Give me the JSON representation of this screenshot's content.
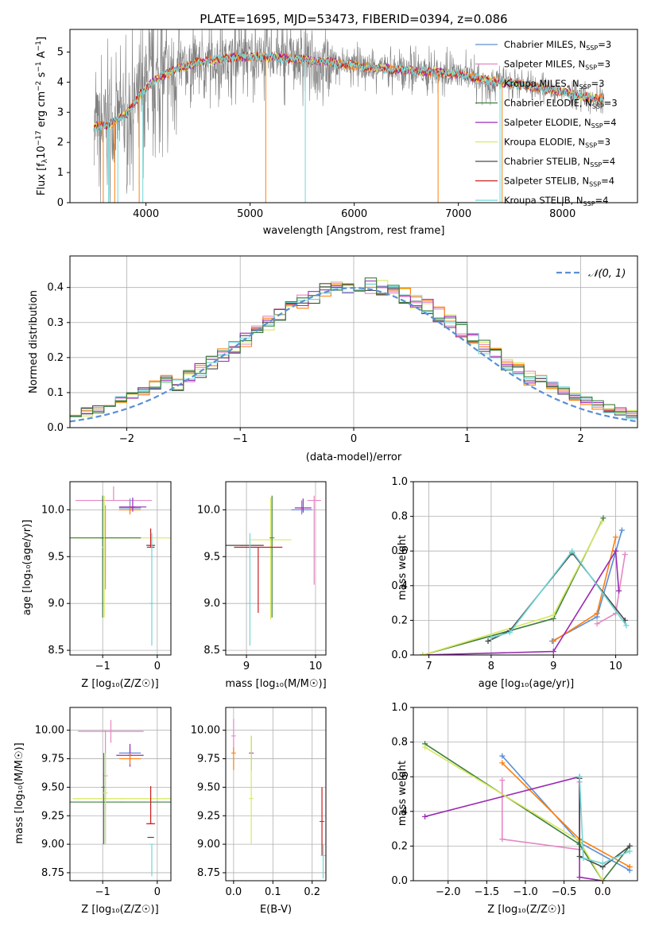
{
  "title": "PLATE=1695, MJD=53473, FIBERID=0394, z=0.086",
  "colors": {
    "Chabrier MILES": "#5b8fd6",
    "Salpeter MILES": "#e588c4",
    "Kroupa MILES": "#7ab0e0",
    "Chabrier ELODIE": "#3d7f3d",
    "Salpeter ELODIE": "#9a2ab3",
    "Kroupa ELODIE": "#d8e860",
    "Chabrier STELIB": "#4a4a4a",
    "Salpeter STELIB": "#c81e1e",
    "Kroupa STELIB": "#70d6d6",
    "orange": "#ff7f0e",
    "gray_spectrum": "#808080",
    "normal_curve": "#5b8fd6"
  },
  "chart_data": [
    {
      "type": "line",
      "id": "spectrum",
      "title": "PLATE=1695, MJD=53473, FIBERID=0394, z=0.086",
      "xlabel": "wavelength [Angstrom, rest frame]",
      "ylabel_pre": "Flux [f",
      "ylabel_sub": "λ",
      "ylabel_mid": "10",
      "ylabel_sup1": "−17",
      "ylabel_mid2": " erg cm",
      "ylabel_sup2": "−2",
      "ylabel_mid3": " s",
      "ylabel_sup3": "−1",
      "ylabel_post": " A",
      "ylabel_sup4": "−1",
      "ylabel_end": "]",
      "xlim": [
        3270,
        8720
      ],
      "ylim": [
        0,
        5.75
      ],
      "xticks": [
        4000,
        5000,
        6000,
        7000,
        8000
      ],
      "yticks": [
        0,
        1,
        2,
        3,
        4,
        5
      ],
      "continuum": {
        "x": [
          3500,
          3650,
          3800,
          3950,
          4100,
          4300,
          4500,
          4700,
          4900,
          5100,
          5300,
          5500,
          5700,
          5900,
          6100,
          6300,
          6500,
          6700,
          6900,
          7100,
          7300,
          7500,
          7700,
          7900,
          8100,
          8300,
          8400
        ],
        "y": [
          2.5,
          2.6,
          2.9,
          3.6,
          4.1,
          4.45,
          4.65,
          4.75,
          4.85,
          4.85,
          4.8,
          4.75,
          4.7,
          4.6,
          4.5,
          4.45,
          4.4,
          4.35,
          4.3,
          4.2,
          4.05,
          3.95,
          3.85,
          3.75,
          3.6,
          3.45,
          3.4
        ]
      },
      "legend": [
        {
          "label": "Chabrier MILES, N",
          "sub": "SSP",
          "suffix": "=3",
          "key": "Chabrier MILES"
        },
        {
          "label": "Salpeter MILES, N",
          "sub": "SSP",
          "suffix": "=3",
          "key": "Salpeter MILES"
        },
        {
          "label": "Kroupa MILES, N",
          "sub": "SSP",
          "suffix": "=3",
          "key": "Kroupa MILES"
        },
        {
          "label": "Chabrier ELODIE, N",
          "sub": "SSP",
          "suffix": "=3",
          "key": "Chabrier ELODIE"
        },
        {
          "label": "Salpeter ELODIE, N",
          "sub": "SSP",
          "suffix": "=4",
          "key": "Salpeter ELODIE"
        },
        {
          "label": "Kroupa ELODIE, N",
          "sub": "SSP",
          "suffix": "=3",
          "key": "Kroupa ELODIE"
        },
        {
          "label": "Chabrier STELIB, N",
          "sub": "SSP",
          "suffix": "=4",
          "key": "Chabrier STELIB"
        },
        {
          "label": "Salpeter STELIB, N",
          "sub": "SSP",
          "suffix": "=4",
          "key": "Salpeter STELIB"
        },
        {
          "label": "Kroupa STELIB, N",
          "sub": "SSP",
          "suffix": "=4",
          "key": "Kroupa STELIB"
        }
      ]
    },
    {
      "type": "line",
      "id": "residuals",
      "xlabel": "(data-model)/error",
      "ylabel": "Normed distribution",
      "xlim": [
        -2.5,
        2.5
      ],
      "ylim": [
        0,
        0.49
      ],
      "xticks": [
        -2,
        -1,
        0,
        1,
        2
      ],
      "xticklabels": [
        "−2",
        "−1",
        "0",
        "1",
        "2"
      ],
      "yticks": [
        0.0,
        0.1,
        0.2,
        0.3,
        0.4
      ],
      "yticklabels": [
        "0.0",
        "0.1",
        "0.2",
        "0.3",
        "0.4"
      ],
      "grid": true,
      "legend": "𝒩(0, 1)",
      "bin_width": 0.1
    },
    {
      "type": "scatter",
      "id": "age_vs_Z",
      "xlabel": "Z [log₁₀(Z/Z☉)]",
      "ylabel": "age  [log₁₀(age/yr)]",
      "xlim": [
        -1.6,
        0.25
      ],
      "ylim": [
        8.45,
        10.3
      ],
      "xticks": [
        -1,
        0
      ],
      "xticklabels": [
        "−1",
        "0"
      ],
      "yticks": [
        8.5,
        9.0,
        9.5,
        10.0
      ],
      "yticklabels": [
        "8.5",
        "9.0",
        "9.5",
        "10.0"
      ],
      "points": [
        {
          "key": "Salpeter MILES",
          "x": -0.8,
          "y": 10.1,
          "xerr": 0.7,
          "yerr": [
            0.0,
            0.15
          ]
        },
        {
          "key": "Salpeter MILES",
          "x": -0.95,
          "y": 9.7,
          "xerr": 0.0,
          "yerr": [
            0.55,
            0.35
          ]
        },
        {
          "key": "Chabrier MILES",
          "x": -0.5,
          "y": 10.02,
          "xerr": 0.2,
          "yerr": [
            0.05,
            0.1
          ]
        },
        {
          "key": "orange",
          "x": -0.5,
          "y": 10.0,
          "xerr": 0.2,
          "yerr": [
            0.05,
            0.05
          ]
        },
        {
          "key": "Salpeter ELODIE",
          "x": -0.45,
          "y": 10.03,
          "xerr": 0.25,
          "yerr": [
            0.05,
            0.1
          ]
        },
        {
          "key": "Kroupa ELODIE",
          "x": -0.65,
          "y": 9.7,
          "xerr": 0.9,
          "yerr": [
            0.0,
            0.0
          ]
        },
        {
          "key": "Chabrier ELODIE",
          "x": -1.0,
          "y": 9.7,
          "xerr": 0.7,
          "yerr": [
            0.85,
            0.45
          ]
        },
        {
          "key": "Kroupa ELODIE",
          "x": -0.97,
          "y": 9.6,
          "xerr": 0.0,
          "yerr": [
            0.75,
            0.55
          ]
        },
        {
          "key": "Chabrier STELIB",
          "x": -0.12,
          "y": 9.62,
          "xerr": 0.08,
          "yerr": [
            0.0,
            0.0
          ]
        },
        {
          "key": "Salpeter STELIB",
          "x": -0.12,
          "y": 9.6,
          "xerr": 0.07,
          "yerr": [
            0.0,
            0.2
          ]
        },
        {
          "key": "Kroupa STELIB",
          "x": -0.1,
          "y": 9.0,
          "xerr": 0.0,
          "yerr": [
            0.45,
            0.75
          ]
        }
      ]
    },
    {
      "type": "scatter",
      "id": "age_vs_mass",
      "xlabel": "mass [log₁₀(M/M☉)]",
      "xlim": [
        8.7,
        10.15
      ],
      "ylim": [
        8.45,
        10.3
      ],
      "xticks": [
        9,
        10
      ],
      "xticklabels": [
        "9",
        "10"
      ],
      "yticks": [
        8.5,
        9.0,
        9.5,
        10.0
      ],
      "yticklabels": [
        "8.5",
        "9.0",
        "9.5",
        "10.0"
      ],
      "points": [
        {
          "key": "Salpeter MILES",
          "x": 9.98,
          "y": 10.1,
          "xerr": 0.1,
          "yerr": [
            0.9,
            0.05
          ]
        },
        {
          "key": "Chabrier MILES",
          "x": 9.8,
          "y": 10.0,
          "xerr": 0.15,
          "yerr": [
            0.05,
            0.1
          ]
        },
        {
          "key": "Salpeter ELODIE",
          "x": 9.82,
          "y": 10.02,
          "xerr": 0.12,
          "yerr": [
            0.05,
            0.1
          ]
        },
        {
          "key": "Kroupa ELODIE",
          "x": 9.35,
          "y": 9.68,
          "xerr": 0.3,
          "yerr": [
            0.85,
            0.45
          ]
        },
        {
          "key": "Chabrier ELODIE",
          "x": 9.37,
          "y": 9.7,
          "xerr": 0.0,
          "yerr": [
            0.85,
            0.45
          ]
        },
        {
          "key": "Chabrier STELIB",
          "x": 8.95,
          "y": 9.62,
          "xerr": 0.3,
          "yerr": [
            0.0,
            0.0
          ]
        },
        {
          "key": "Salpeter STELIB",
          "x": 9.17,
          "y": 9.6,
          "xerr": 0.35,
          "yerr": [
            0.7,
            0.0
          ]
        },
        {
          "key": "Kroupa STELIB",
          "x": 9.05,
          "y": 9.0,
          "xerr": 0.0,
          "yerr": [
            0.45,
            0.75
          ]
        }
      ]
    },
    {
      "type": "line",
      "id": "weight_vs_age",
      "xlabel": "age  [log₁₀(age/yr)]",
      "ylabel": "mass weight",
      "xlim": [
        6.75,
        10.35
      ],
      "ylim": [
        0,
        1.0
      ],
      "xticks": [
        7,
        8,
        9,
        10
      ],
      "yticks": [
        0,
        0.2,
        0.4,
        0.6,
        0.8,
        1.0
      ],
      "yticklabels": [
        "0.0",
        "0.2",
        "0.4",
        "0.6",
        "0.8",
        "1.0"
      ],
      "grid": true,
      "series": [
        {
          "key": "Chabrier MILES",
          "x": [
            8.98,
            9.7,
            10.1
          ],
          "y": [
            0.08,
            0.22,
            0.72
          ]
        },
        {
          "key": "orange",
          "x": [
            9.0,
            9.7,
            10.0
          ],
          "y": [
            0.08,
            0.24,
            0.68
          ]
        },
        {
          "key": "Salpeter MILES",
          "x": [
            9.7,
            10.0,
            10.15
          ],
          "y": [
            0.18,
            0.24,
            0.58
          ]
        },
        {
          "key": "Salpeter ELODIE",
          "x": [
            6.9,
            9.0,
            10.0,
            10.05
          ],
          "y": [
            0.0,
            0.02,
            0.6,
            0.37
          ]
        },
        {
          "key": "Chabrier ELODIE",
          "x": [
            6.9,
            9.0,
            9.8
          ],
          "y": [
            0.0,
            0.21,
            0.79
          ]
        },
        {
          "key": "Kroupa ELODIE",
          "x": [
            6.9,
            9.0,
            9.78
          ],
          "y": [
            0.0,
            0.23,
            0.77
          ]
        },
        {
          "key": "Chabrier STELIB",
          "x": [
            7.95,
            8.3,
            9.3,
            10.15
          ],
          "y": [
            0.08,
            0.14,
            0.59,
            0.2
          ]
        },
        {
          "key": "Kroupa STELIB",
          "x": [
            8.0,
            8.3,
            9.3,
            10.17
          ],
          "y": [
            0.1,
            0.13,
            0.6,
            0.17
          ]
        }
      ]
    },
    {
      "type": "scatter",
      "id": "mass_vs_Z",
      "xlabel": "Z [log₁₀(Z/Z☉)]",
      "ylabel": "mass [log₁₀(M/M☉)]",
      "xlim": [
        -1.6,
        0.25
      ],
      "ylim": [
        8.68,
        10.2
      ],
      "xticks": [
        -1,
        0
      ],
      "xticklabels": [
        "−1",
        "0"
      ],
      "yticks": [
        8.75,
        9.0,
        9.25,
        9.5,
        9.75,
        10.0
      ],
      "yticklabels": [
        "8.75",
        "9.00",
        "9.25",
        "9.50",
        "9.75",
        "10.00"
      ],
      "points": [
        {
          "key": "Salpeter MILES",
          "x": -0.85,
          "y": 9.99,
          "xerr": 0.6,
          "yerr": [
            0.1,
            0.1
          ]
        },
        {
          "key": "Salpeter MILES",
          "x": -0.95,
          "y": 9.6,
          "xerr": 0.0,
          "yerr": [
            0.6,
            0.4
          ]
        },
        {
          "key": "Chabrier MILES",
          "x": -0.5,
          "y": 9.8,
          "xerr": 0.2,
          "yerr": [
            0.05,
            0.05
          ]
        },
        {
          "key": "Salpeter ELODIE",
          "x": -0.5,
          "y": 9.78,
          "xerr": 0.25,
          "yerr": [
            0.1,
            0.1
          ]
        },
        {
          "key": "orange",
          "x": -0.5,
          "y": 9.75,
          "xerr": 0.2,
          "yerr": [
            0.05,
            0.05
          ]
        },
        {
          "key": "Kroupa ELODIE",
          "x": -0.65,
          "y": 9.4,
          "xerr": 0.9,
          "yerr": [
            0.0,
            0.0
          ]
        },
        {
          "key": "Chabrier ELODIE",
          "x": -0.65,
          "y": 9.37,
          "xerr": 0.95,
          "yerr": [
            0.0,
            0.0
          ]
        },
        {
          "key": "Chabrier ELODIE",
          "x": -0.98,
          "y": 9.5,
          "xerr": 0.0,
          "yerr": [
            0.5,
            0.3
          ]
        },
        {
          "key": "Kroupa ELODIE",
          "x": -0.95,
          "y": 9.45,
          "xerr": 0.0,
          "yerr": [
            0.45,
            0.35
          ]
        },
        {
          "key": "Salpeter STELIB",
          "x": -0.12,
          "y": 9.18,
          "xerr": 0.08,
          "yerr": [
            0.0,
            0.33
          ]
        },
        {
          "key": "Chabrier STELIB",
          "x": -0.12,
          "y": 9.06,
          "xerr": 0.06,
          "yerr": [
            0.0,
            0.0
          ]
        },
        {
          "key": "Kroupa STELIB",
          "x": -0.1,
          "y": 9.0,
          "xerr": 0.0,
          "yerr": [
            0.28,
            0.0
          ]
        }
      ]
    },
    {
      "type": "scatter",
      "id": "mass_vs_ebv",
      "xlabel": "E(B-V)",
      "xlim": [
        -0.02,
        0.235
      ],
      "ylim": [
        8.68,
        10.2
      ],
      "xticks": [
        0.0,
        0.1,
        0.2
      ],
      "xticklabels": [
        "0.0",
        "0.1",
        "0.2"
      ],
      "yticks": [
        8.75,
        9.0,
        9.25,
        9.5,
        9.75,
        10.0
      ],
      "yticklabels": [
        "8.75",
        "9.00",
        "9.25",
        "9.50",
        "9.75",
        "10.00"
      ],
      "points": [
        {
          "key": "Salpeter MILES",
          "x": 0.0,
          "y": 9.95,
          "xerr": 0.0,
          "yerr": [
            0.15,
            0.15
          ]
        },
        {
          "key": "orange",
          "x": 0.0,
          "y": 9.8,
          "xerr": 0.0,
          "yerr": [
            0.15,
            0.05
          ]
        },
        {
          "key": "Salpeter ELODIE",
          "x": 0.045,
          "y": 9.8,
          "xerr": 0.0,
          "yerr": [
            0.15,
            0.15
          ]
        },
        {
          "key": "Kroupa ELODIE",
          "x": 0.045,
          "y": 9.4,
          "xerr": 0.0,
          "yerr": [
            0.4,
            0.55
          ]
        },
        {
          "key": "Salpeter STELIB",
          "x": 0.225,
          "y": 9.2,
          "xerr": 0.0,
          "yerr": [
            0.3,
            0.3
          ]
        },
        {
          "key": "Kroupa STELIB",
          "x": 0.228,
          "y": 8.9,
          "xerr": 0.0,
          "yerr": [
            0.2,
            0.1
          ]
        }
      ]
    },
    {
      "type": "line",
      "id": "weight_vs_Z",
      "xlabel": "Z [log₁₀(Z/Z☉)]",
      "ylabel": "mass weight",
      "xlim": [
        -2.45,
        0.45
      ],
      "ylim": [
        0,
        1.0
      ],
      "xticks": [
        -2.0,
        -1.5,
        -1.0,
        -0.5,
        0.0
      ],
      "xticklabels": [
        "−2.0",
        "−1.5",
        "−1.0",
        "−0.5",
        "0.0"
      ],
      "yticks": [
        0,
        0.2,
        0.4,
        0.6,
        0.8,
        1.0
      ],
      "yticklabels": [
        "0.0",
        "0.2",
        "0.4",
        "0.6",
        "0.8",
        "1.0"
      ],
      "grid": true,
      "series": [
        {
          "key": "Chabrier MILES",
          "x": [
            -1.3,
            -0.3,
            0.35
          ],
          "y": [
            0.72,
            0.22,
            0.06
          ]
        },
        {
          "key": "orange",
          "x": [
            -1.3,
            -0.3,
            0.35
          ],
          "y": [
            0.68,
            0.24,
            0.08
          ]
        },
        {
          "key": "Salpeter MILES",
          "x": [
            -1.3,
            -1.3,
            -0.3,
            -0.3
          ],
          "y": [
            0.58,
            0.24,
            0.18,
            0.57
          ]
        },
        {
          "key": "Salpeter ELODIE",
          "x": [
            -2.3,
            -0.3,
            -0.3,
            0.0
          ],
          "y": [
            0.37,
            0.6,
            0.02,
            0.0
          ]
        },
        {
          "key": "Chabrier ELODIE",
          "x": [
            -2.3,
            -0.3,
            0.0,
            0.35
          ],
          "y": [
            0.79,
            0.21,
            0.0,
            0.2
          ]
        },
        {
          "key": "Kroupa ELODIE",
          "x": [
            -2.3,
            -0.3,
            0.0
          ],
          "y": [
            0.77,
            0.23,
            0.0
          ]
        },
        {
          "key": "Chabrier STELIB",
          "x": [
            -0.3,
            -0.3,
            0.0,
            0.35
          ],
          "y": [
            0.59,
            0.14,
            0.08,
            0.2
          ]
        },
        {
          "key": "Kroupa STELIB",
          "x": [
            -0.3,
            -0.25,
            0.0,
            0.35
          ],
          "y": [
            0.6,
            0.13,
            0.1,
            0.17
          ]
        }
      ]
    }
  ]
}
